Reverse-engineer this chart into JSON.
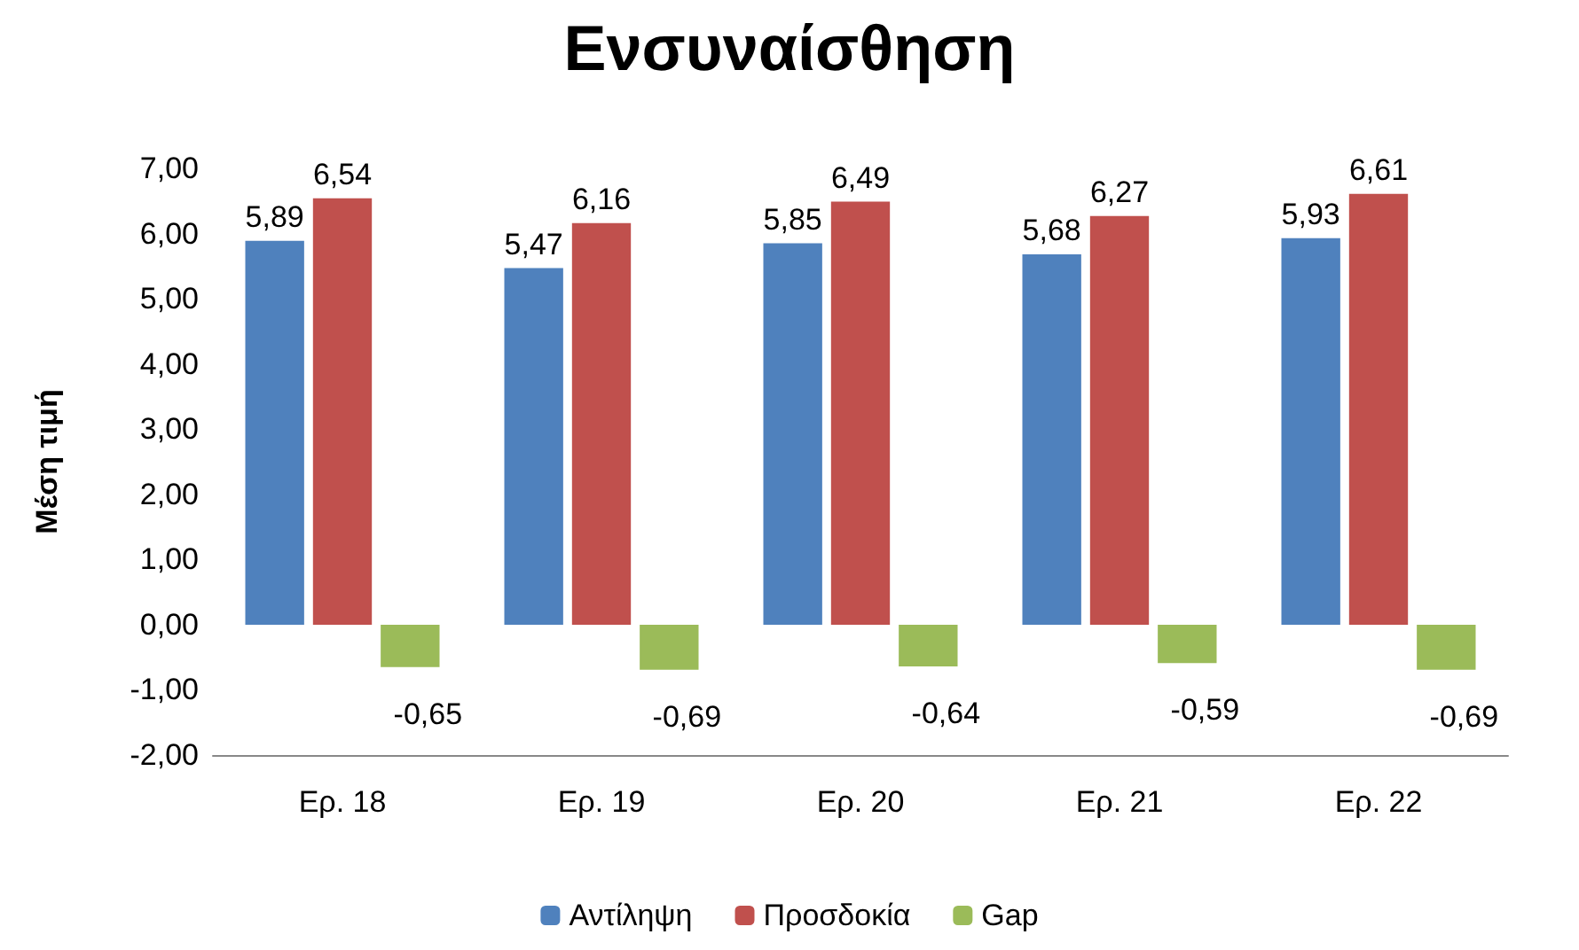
{
  "chart_data": {
    "type": "bar",
    "title": "Ενσυναίσθηση",
    "ylabel": "Μέση τιμή",
    "categories": [
      "Ερ. 18",
      "Ερ. 19",
      "Ερ. 20",
      "Ερ. 21",
      "Ερ. 22"
    ],
    "series": [
      {
        "name": "Αντίληψη",
        "color": "#4f81bd",
        "values": [
          5.89,
          5.47,
          5.85,
          5.68,
          5.93
        ],
        "value_labels": [
          "5,89",
          "5,47",
          "5,85",
          "5,68",
          "5,93"
        ]
      },
      {
        "name": "Προσδοκία",
        "color": "#c0504d",
        "values": [
          6.54,
          6.16,
          6.49,
          6.27,
          6.61
        ],
        "value_labels": [
          "6,54",
          "6,16",
          "6,49",
          "6,27",
          "6,61"
        ]
      },
      {
        "name": "Gap",
        "color": "#9bbb59",
        "values": [
          -0.65,
          -0.69,
          -0.64,
          -0.59,
          -0.69
        ],
        "value_labels": [
          "-0,65",
          "-0,69",
          "-0,64",
          "-0,59",
          "-0,69"
        ]
      }
    ],
    "ylim": [
      -2,
      7
    ],
    "yticks": [
      {
        "value": -2,
        "label": "-2,00"
      },
      {
        "value": -1,
        "label": "-1,00"
      },
      {
        "value": 0,
        "label": "0,00"
      },
      {
        "value": 1,
        "label": "1,00"
      },
      {
        "value": 2,
        "label": "2,00"
      },
      {
        "value": 3,
        "label": "3,00"
      },
      {
        "value": 4,
        "label": "4,00"
      },
      {
        "value": 5,
        "label": "5,00"
      },
      {
        "value": 6,
        "label": "6,00"
      },
      {
        "value": 7,
        "label": "7,00"
      }
    ],
    "grid": false,
    "legend": "bottom"
  }
}
